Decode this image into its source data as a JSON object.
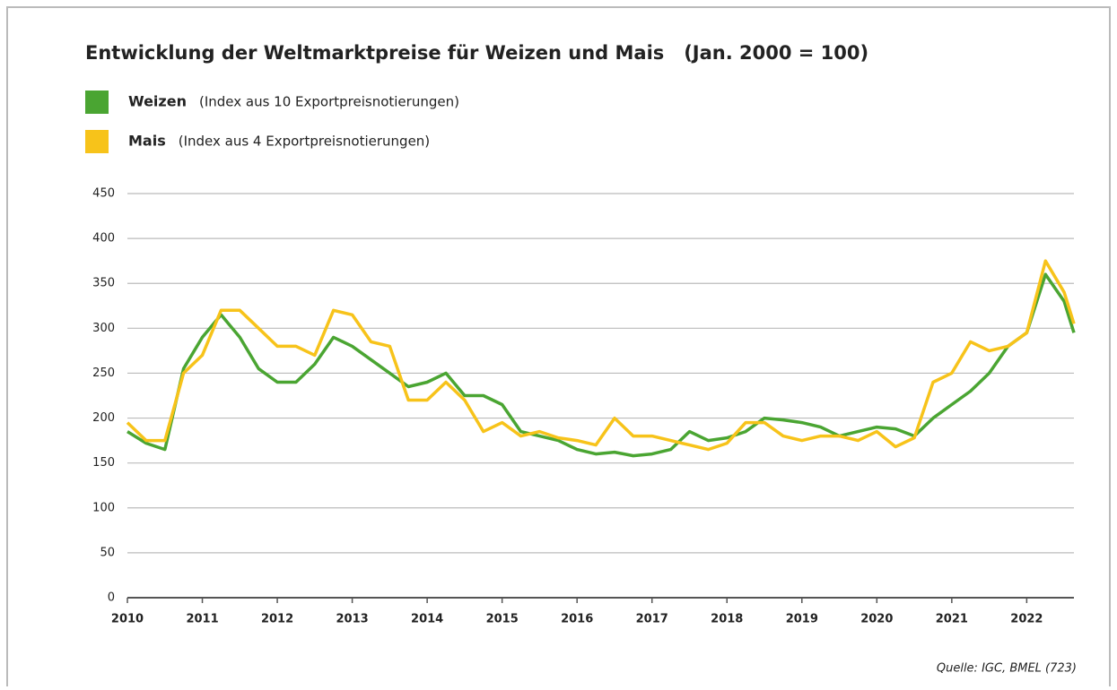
{
  "chart_data": {
    "type": "line",
    "title": "Entwicklung der Weltmarktpreise für Weizen und Mais   (Jan. 2000 = 100)",
    "source": "Quelle: IGC, BMEL (723)",
    "x": [
      2010,
      2010.25,
      2010.5,
      2010.75,
      2011,
      2011.25,
      2011.5,
      2011.75,
      2012,
      2012.25,
      2012.5,
      2012.75,
      2013,
      2013.25,
      2013.5,
      2013.75,
      2014,
      2014.25,
      2014.5,
      2014.75,
      2015,
      2015.25,
      2015.5,
      2015.75,
      2016,
      2016.25,
      2016.5,
      2016.75,
      2017,
      2017.25,
      2017.5,
      2017.75,
      2018,
      2018.25,
      2018.5,
      2018.75,
      2019,
      2019.25,
      2019.5,
      2019.75,
      2020,
      2020.25,
      2020.5,
      2020.75,
      2021,
      2021.25,
      2021.5,
      2021.75,
      2022,
      2022.25,
      2022.5,
      2022.63
    ],
    "series": [
      {
        "name": "Weizen",
        "description": "(Index aus 10 Exportpreisnotierungen)",
        "color": "#4aa532",
        "values": [
          185,
          172,
          165,
          255,
          290,
          315,
          290,
          255,
          240,
          240,
          260,
          290,
          280,
          265,
          250,
          235,
          240,
          250,
          225,
          225,
          215,
          185,
          180,
          175,
          165,
          160,
          162,
          158,
          160,
          165,
          185,
          175,
          178,
          185,
          200,
          198,
          195,
          190,
          180,
          185,
          190,
          188,
          180,
          200,
          215,
          230,
          250,
          280,
          295,
          360,
          330,
          295
        ]
      },
      {
        "name": "Mais",
        "description": "(Index aus 4 Exportpreisnotierungen)",
        "color": "#f7c31a",
        "values": [
          195,
          175,
          175,
          250,
          270,
          320,
          320,
          300,
          280,
          280,
          270,
          320,
          315,
          285,
          280,
          220,
          220,
          240,
          220,
          185,
          195,
          180,
          185,
          178,
          175,
          170,
          200,
          180,
          180,
          175,
          170,
          165,
          172,
          195,
          195,
          180,
          175,
          180,
          180,
          175,
          185,
          168,
          178,
          240,
          250,
          285,
          275,
          280,
          295,
          375,
          340,
          305
        ]
      }
    ],
    "xlim": [
      2010,
      2022.63
    ],
    "xticks": [
      2010,
      2011,
      2012,
      2013,
      2014,
      2015,
      2016,
      2017,
      2018,
      2019,
      2020,
      2021,
      2022
    ],
    "ylim": [
      0,
      450
    ],
    "yticks": [
      0,
      50,
      100,
      150,
      200,
      250,
      300,
      350,
      400,
      450
    ],
    "grid": true
  }
}
